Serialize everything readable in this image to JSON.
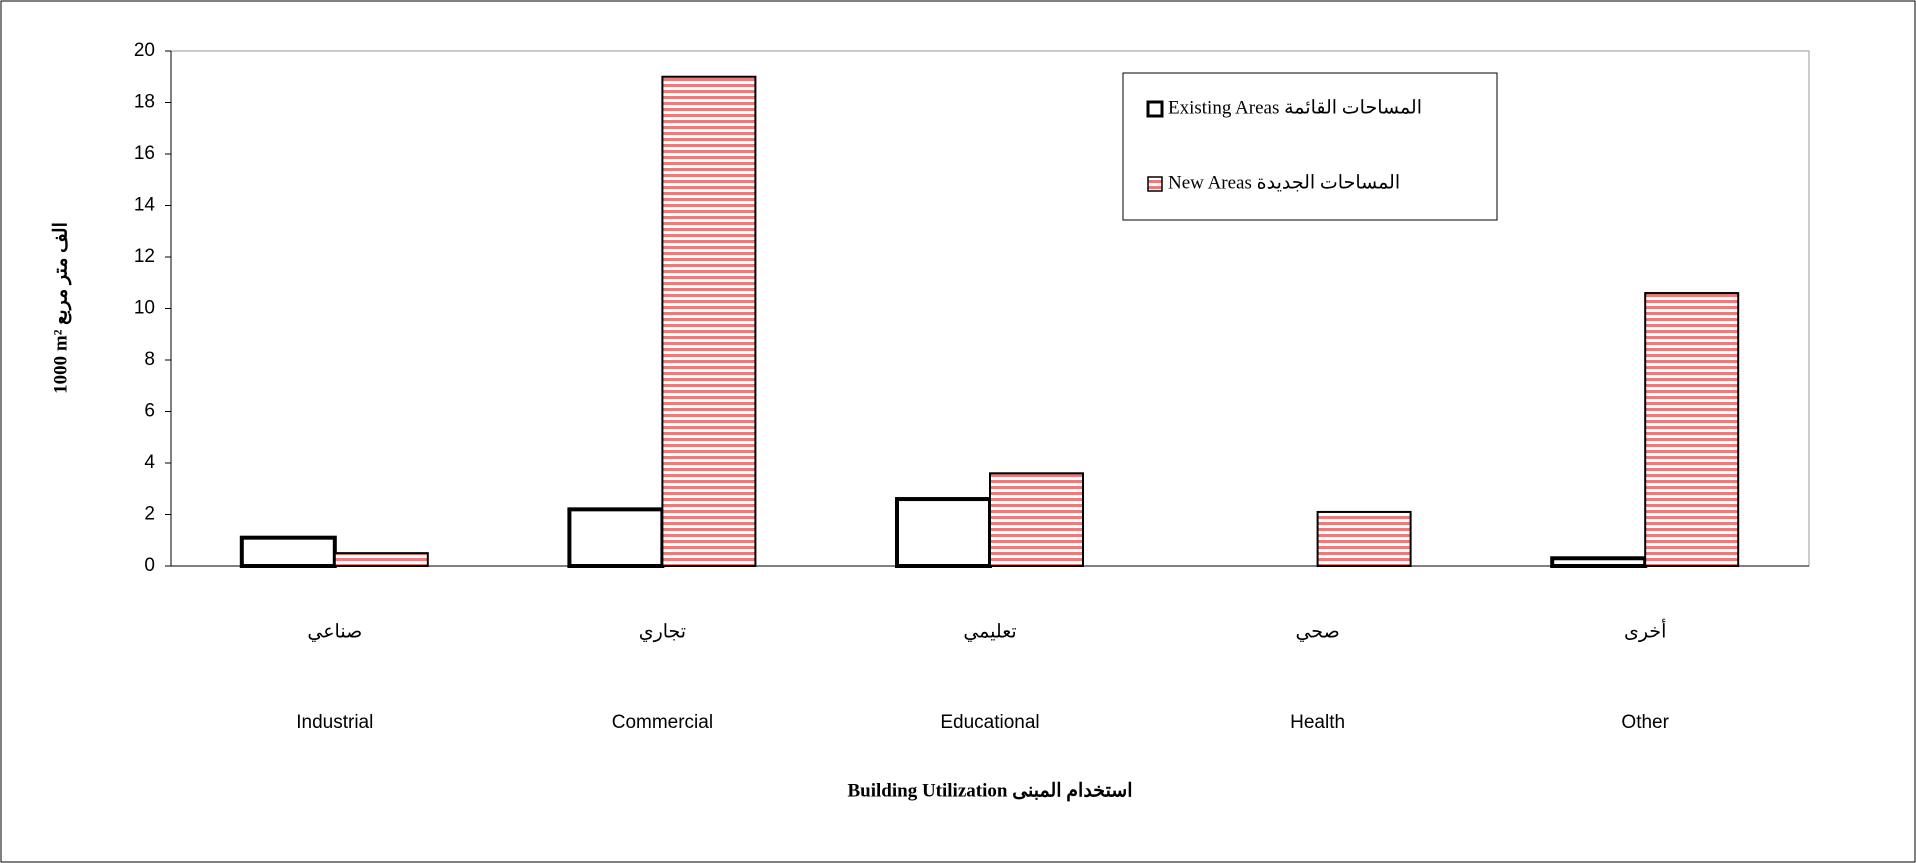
{
  "chart_data": {
    "type": "bar",
    "y_label": "1000 m²  الف متر مربع",
    "x_label": "Building Utilization استخدام المبنى",
    "categories": [
      "Industrial",
      "Commercial",
      "Educational",
      "Health",
      "Other"
    ],
    "category_labels_ar": [
      "صناعي",
      "تجاري",
      "تعليمي",
      "صحي",
      "أخرى"
    ],
    "series": [
      {
        "name": "Existing Areas المساحات القائمة",
        "color": "#000000",
        "pattern": "none",
        "values": [
          1.1,
          2.2,
          2.6,
          null,
          0.3
        ]
      },
      {
        "name": "New Areas المساحات الجديدة",
        "color": "#f07a7a",
        "pattern": "horizontal-stripes",
        "values": [
          0.5,
          19,
          3.6,
          2.1,
          10.6
        ]
      }
    ],
    "ylim": [
      0,
      20
    ],
    "yticks": [
      0,
      2,
      4,
      6,
      8,
      10,
      12,
      14,
      16,
      18,
      20
    ],
    "grid": false,
    "legend": "top-right"
  }
}
